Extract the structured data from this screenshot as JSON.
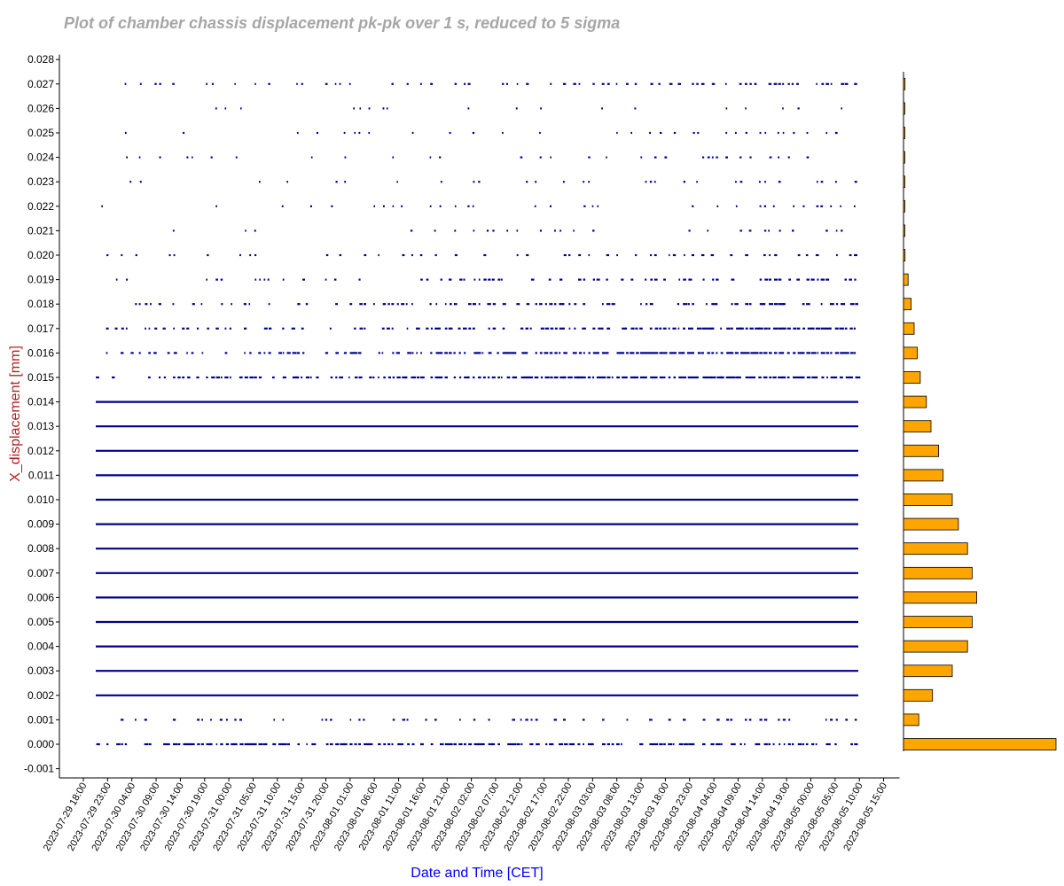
{
  "chart_data": {
    "type": "scatter",
    "title": "Plot of chamber chassis displacement pk-pk over 1 s, reduced to 5 sigma",
    "xlabel": "Date and Time [CET]",
    "ylabel": "X_displacement [mm]",
    "x_tick_labels": [
      "2023-07-29 18:00",
      "2023-07-29 23:00",
      "2023-07-30 04:00",
      "2023-07-30 09:00",
      "2023-07-30 14:00",
      "2023-07-30 19:00",
      "2023-07-31 00:00",
      "2023-07-31 05:00",
      "2023-07-31 10:00",
      "2023-07-31 15:00",
      "2023-07-31 20:00",
      "2023-08-01 01:00",
      "2023-08-01 06:00",
      "2023-08-01 11:00",
      "2023-08-01 16:00",
      "2023-08-01 21:00",
      "2023-08-02 02:00",
      "2023-08-02 07:00",
      "2023-08-02 12:00",
      "2023-08-02 17:00",
      "2023-08-02 22:00",
      "2023-08-03 03:00",
      "2023-08-03 08:00",
      "2023-08-03 13:00",
      "2023-08-03 18:00",
      "2023-08-03 23:00",
      "2023-08-04 04:00",
      "2023-08-04 09:00",
      "2023-08-04 14:00",
      "2023-08-04 19:00",
      "2023-08-05 00:00",
      "2023-08-05 05:00",
      "2023-08-05 10:00",
      "2023-08-05 15:00"
    ],
    "y_tick_labels": [
      "-0.001",
      "0.000",
      "0.001",
      "0.002",
      "0.003",
      "0.004",
      "0.005",
      "0.006",
      "0.007",
      "0.008",
      "0.009",
      "0.010",
      "0.011",
      "0.012",
      "0.013",
      "0.014",
      "0.015",
      "0.016",
      "0.017",
      "0.018",
      "0.019",
      "0.020",
      "0.021",
      "0.022",
      "0.023",
      "0.024",
      "0.025",
      "0.026",
      "0.027",
      "0.028"
    ],
    "ylim": [
      -0.0012,
      0.0282
    ],
    "x_range": [
      "2023-07-29 18:00",
      "2023-08-05 17:00"
    ],
    "data_x_range": [
      "2023-07-29 21:00",
      "2023-08-05 10:00"
    ],
    "levels": [
      0.0,
      0.001,
      0.002,
      0.003,
      0.004,
      0.005,
      0.006,
      0.007,
      0.008,
      0.009,
      0.01,
      0.011,
      0.012,
      0.013,
      0.014,
      0.015,
      0.016,
      0.017,
      0.018,
      0.019,
      0.02,
      0.021,
      0.022,
      0.023,
      0.024,
      0.025,
      0.026,
      0.027
    ],
    "level_point_density": [
      0.78,
      0.4,
      1.0,
      1.0,
      1.0,
      1.0,
      1.0,
      1.0,
      1.0,
      1.0,
      1.0,
      1.0,
      0.99,
      0.98,
      0.97,
      0.92,
      0.82,
      0.68,
      0.55,
      0.38,
      0.3,
      0.18,
      0.17,
      0.17,
      0.2,
      0.18,
      0.1,
      0.34
    ],
    "histogram": {
      "orientation": "horizontal",
      "values": [
        1.0,
        0.1,
        0.19,
        0.32,
        0.42,
        0.45,
        0.48,
        0.45,
        0.42,
        0.36,
        0.32,
        0.26,
        0.23,
        0.18,
        0.15,
        0.11,
        0.09,
        0.07,
        0.05,
        0.03,
        0.01,
        0.005,
        0.005,
        0.005,
        0.005,
        0.005,
        0.003,
        0.01
      ],
      "color": "#FFA500"
    },
    "grid": false,
    "legend": "none",
    "colors": {
      "points": "#00008B",
      "title": "#A6A6A6",
      "xlabel": "#0000FF",
      "ylabel": "#B22222",
      "bars": "#FFA500"
    }
  }
}
